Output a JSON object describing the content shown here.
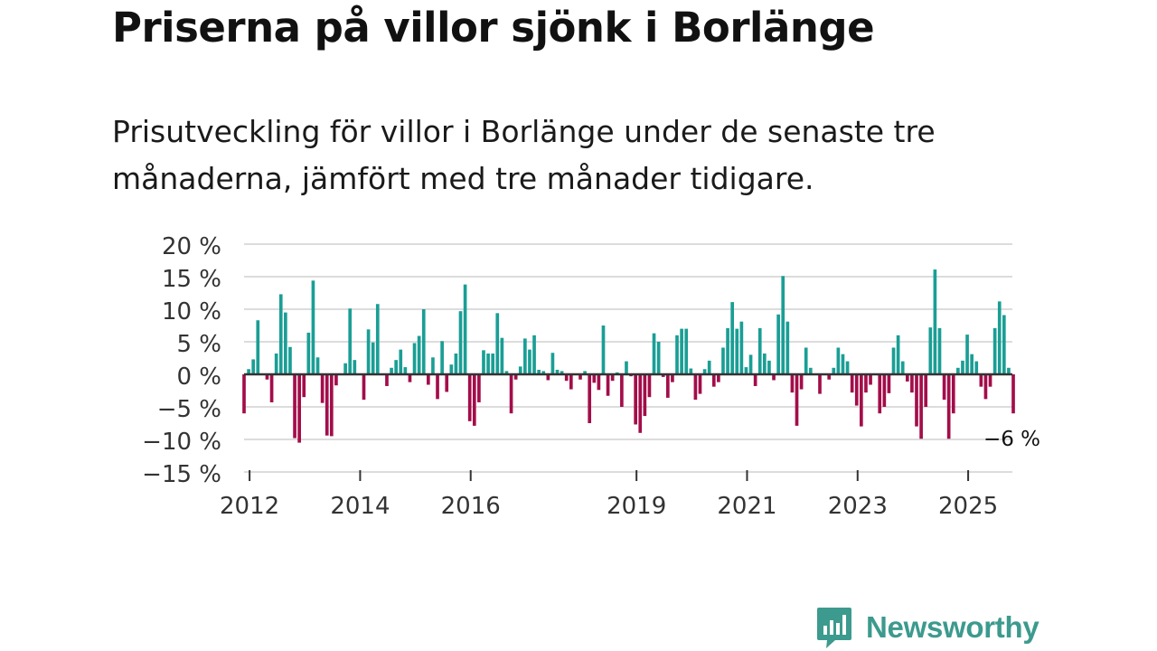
{
  "headline": "Priserna på villor sjönk i Borlänge",
  "subtitle": "Prisutveckling för villor i Borlänge under de senaste tre månaderna, jämfört med tre månader tidigare.",
  "logo": {
    "name": "Newsworthy",
    "icon": "newsworthy-bar-chart-icon"
  },
  "colors": {
    "positive": "#1a9e95",
    "negative": "#a30d4a",
    "grid": "#dcdcdc",
    "zero_line": "#333333",
    "logo": "#3c9a8e"
  },
  "chart_data": {
    "type": "bar",
    "title": "Priserna på villor sjönk i Borlänge",
    "xlabel": "",
    "ylabel": "",
    "ylim": [
      -15,
      20
    ],
    "yticks": [
      20,
      15,
      10,
      5,
      0,
      -5,
      -10,
      -15
    ],
    "ytick_labels": [
      "20 %",
      "15 %",
      "10 %",
      "5 %",
      "0 %",
      "−5 %",
      "−10 %",
      "−15 %"
    ],
    "x_start": 2011.9,
    "x_end": 2025.8,
    "xticks": [
      2012,
      2014,
      2016,
      2019,
      2021,
      2023,
      2025
    ],
    "xtick_labels": [
      "2012",
      "2014",
      "2016",
      "2019",
      "2021",
      "2023",
      "2025"
    ],
    "annotation": {
      "label": "−6 %",
      "value": -6
    },
    "months_per_bar": 1,
    "first_bar": 2011.9,
    "values": [
      -6,
      0.8,
      2.3,
      8.3,
      0,
      -0.8,
      -4.3,
      3.2,
      12.3,
      9.5,
      4.2,
      -9.8,
      -10.5,
      -3.5,
      6.4,
      14.4,
      2.6,
      -4.4,
      -9.4,
      -9.5,
      -1.7,
      0,
      1.7,
      10.1,
      2.2,
      0,
      -3.9,
      6.9,
      4.9,
      10.8,
      0,
      -1.8,
      1,
      2.2,
      3.8,
      1.1,
      -1.2,
      4.8,
      5.9,
      10,
      -1.6,
      2.6,
      -3.8,
      5.1,
      -2.7,
      1.5,
      3.2,
      9.7,
      13.8,
      -7.2,
      -7.9,
      -4.3,
      3.7,
      3.2,
      3.2,
      9.4,
      5.6,
      0.5,
      -6,
      -0.8,
      1.2,
      5.5,
      3.8,
      6,
      0.7,
      0.5,
      -0.9,
      3.3,
      0.7,
      0.5,
      -1,
      -2.3,
      0,
      -0.8,
      0.5,
      -7.5,
      -1.3,
      -2.4,
      7.5,
      -3.3,
      -1,
      0.3,
      -5,
      2,
      -0.3,
      -7.7,
      -9,
      -6.4,
      -3.5,
      6.3,
      5,
      -0.4,
      -3.6,
      -1.2,
      6,
      7,
      7,
      0.9,
      -3.9,
      -3,
      0.8,
      2.1,
      -1.9,
      -1.2,
      4.1,
      7.1,
      11.1,
      7,
      8.1,
      1.1,
      3,
      -1.8,
      7.1,
      3.2,
      2.1,
      -0.9,
      9.2,
      15.1,
      8.1,
      -2.8,
      -7.9,
      -2.3,
      4.1,
      1,
      0,
      -3,
      0,
      -0.8,
      1,
      4.1,
      3.1,
      2,
      -2.8,
      -4.8,
      -8,
      -2.8,
      -1.6,
      0,
      -6,
      -5,
      -2.9,
      4.1,
      6,
      2,
      -1.1,
      -2.8,
      -8,
      -9.9,
      -5,
      7.2,
      16.1,
      7.1,
      -3.9,
      -9.9,
      -6,
      1,
      2.1,
      6.1,
      3.1,
      2,
      -1.9,
      -3.8,
      -1.9,
      7.1,
      11.2,
      9.1,
      1,
      -6
    ]
  }
}
